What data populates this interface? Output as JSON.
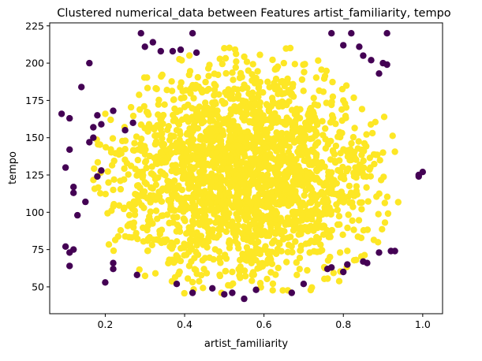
{
  "chart_data": {
    "type": "scatter",
    "title": "Clustered numerical_data between Features artist_familiarity, tempo",
    "xlabel": "artist_familiarity",
    "ylabel": "tempo",
    "xlim": [
      0.06,
      1.05
    ],
    "ylim": [
      32,
      227
    ],
    "xticks": [
      0.2,
      0.4,
      0.6,
      0.8,
      1.0
    ],
    "xtick_labels": [
      "0.2",
      "0.4",
      "0.6",
      "0.8",
      "1.0"
    ],
    "yticks": [
      50,
      75,
      100,
      125,
      150,
      175,
      200,
      225
    ],
    "ytick_labels": [
      "50",
      "75",
      "100",
      "125",
      "150",
      "175",
      "200",
      "225"
    ],
    "grid": false,
    "legend": "none",
    "colors": {
      "cluster_0": "#440154",
      "cluster_1": "#fde725"
    },
    "series": [
      {
        "cluster": 1,
        "color": "#fde725",
        "distribution": {
          "x_range": [
            0.17,
            0.95
          ],
          "y_range": [
            45,
            220
          ],
          "x_center": 0.55,
          "y_center": 125,
          "count": 2200
        },
        "points": [
          [
            0.55,
            125
          ],
          [
            0.48,
            140
          ],
          [
            0.62,
            110
          ],
          [
            0.7,
            150
          ],
          [
            0.4,
            95
          ],
          [
            0.85,
            130
          ],
          [
            0.3,
            120
          ],
          [
            0.58,
            190
          ],
          [
            0.52,
            60
          ],
          [
            0.75,
            85
          ],
          [
            0.45,
            170
          ],
          [
            0.65,
            200
          ],
          [
            0.35,
            80
          ],
          [
            0.9,
            140
          ],
          [
            0.22,
            115
          ],
          [
            0.8,
            175
          ],
          [
            0.6,
            75
          ],
          [
            0.5,
            210
          ],
          [
            0.72,
            125
          ],
          [
            0.38,
            155
          ]
        ]
      },
      {
        "cluster": 0,
        "color": "#440154",
        "points": [
          [
            0.09,
            166
          ],
          [
            0.11,
            163
          ],
          [
            0.1,
            130
          ],
          [
            0.11,
            142
          ],
          [
            0.12,
            117
          ],
          [
            0.12,
            113
          ],
          [
            0.13,
            98
          ],
          [
            0.15,
            107
          ],
          [
            0.16,
            147
          ],
          [
            0.17,
            150
          ],
          [
            0.17,
            157
          ],
          [
            0.19,
            159
          ],
          [
            0.18,
            165
          ],
          [
            0.19,
            128
          ],
          [
            0.18,
            124
          ],
          [
            0.1,
            77
          ],
          [
            0.11,
            73
          ],
          [
            0.12,
            75
          ],
          [
            0.11,
            64
          ],
          [
            0.16,
            200
          ],
          [
            0.14,
            184
          ],
          [
            0.22,
            168
          ],
          [
            0.22,
            66
          ],
          [
            0.22,
            62
          ],
          [
            0.2,
            53
          ],
          [
            0.25,
            155
          ],
          [
            0.27,
            160
          ],
          [
            0.29,
            220
          ],
          [
            0.3,
            211
          ],
          [
            0.32,
            214
          ],
          [
            0.34,
            208
          ],
          [
            0.37,
            208
          ],
          [
            0.39,
            209
          ],
          [
            0.28,
            58
          ],
          [
            0.38,
            52
          ],
          [
            0.42,
            46
          ],
          [
            0.47,
            49
          ],
          [
            0.5,
            45
          ],
          [
            0.52,
            46
          ],
          [
            0.55,
            42
          ],
          [
            0.58,
            48
          ],
          [
            0.42,
            220
          ],
          [
            0.43,
            207
          ],
          [
            0.67,
            46
          ],
          [
            0.7,
            52
          ],
          [
            0.76,
            62
          ],
          [
            0.77,
            63
          ],
          [
            0.8,
            60
          ],
          [
            0.81,
            65
          ],
          [
            0.85,
            67
          ],
          [
            0.86,
            66
          ],
          [
            0.89,
            73
          ],
          [
            0.92,
            74
          ],
          [
            0.93,
            74
          ],
          [
            0.77,
            220
          ],
          [
            0.8,
            212
          ],
          [
            0.82,
            220
          ],
          [
            0.84,
            211
          ],
          [
            0.85,
            205
          ],
          [
            0.87,
            202
          ],
          [
            0.89,
            193
          ],
          [
            0.9,
            200
          ],
          [
            0.91,
            199
          ],
          [
            0.91,
            220
          ],
          [
            0.99,
            124
          ],
          [
            1.0,
            127
          ],
          [
            0.99,
            125
          ]
        ]
      }
    ]
  }
}
